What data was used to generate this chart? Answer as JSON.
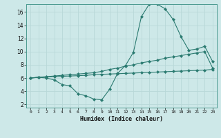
{
  "xlabel": "Humidex (Indice chaleur)",
  "background_color": "#cde8e8",
  "grid_color": "#b8d8d8",
  "line_color": "#2a7a70",
  "xlim": [
    -0.5,
    23.5
  ],
  "ylim": [
    1.5,
    17.2
  ],
  "xticks": [
    0,
    1,
    2,
    3,
    4,
    5,
    6,
    7,
    8,
    9,
    10,
    11,
    12,
    13,
    14,
    15,
    16,
    17,
    18,
    19,
    20,
    21,
    22,
    23
  ],
  "yticks": [
    2,
    4,
    6,
    8,
    10,
    12,
    14,
    16
  ],
  "series1_x": [
    0,
    1,
    2,
    3,
    4,
    5,
    6,
    7,
    8,
    9,
    10,
    11,
    12,
    13,
    14,
    15,
    16,
    17,
    18,
    19,
    20,
    21,
    22,
    23
  ],
  "series1_y": [
    6.0,
    6.1,
    6.0,
    5.7,
    5.0,
    4.8,
    3.6,
    3.3,
    2.8,
    2.7,
    4.3,
    6.7,
    7.9,
    9.9,
    15.3,
    17.2,
    17.2,
    16.5,
    14.9,
    12.3,
    10.2,
    10.4,
    10.8,
    8.5
  ],
  "series2_x": [
    0,
    1,
    2,
    3,
    4,
    5,
    6,
    7,
    8,
    9,
    10,
    11,
    12,
    13,
    14,
    15,
    16,
    17,
    18,
    19,
    20,
    21,
    22,
    23
  ],
  "series2_y": [
    6.0,
    6.1,
    6.2,
    6.3,
    6.4,
    6.5,
    6.6,
    6.7,
    6.8,
    7.0,
    7.3,
    7.5,
    7.8,
    8.0,
    8.3,
    8.5,
    8.7,
    9.0,
    9.2,
    9.4,
    9.6,
    9.8,
    10.0,
    7.5
  ],
  "series3_x": [
    0,
    1,
    2,
    3,
    4,
    5,
    6,
    7,
    8,
    9,
    10,
    11,
    12,
    13,
    14,
    15,
    16,
    17,
    18,
    19,
    20,
    21,
    22,
    23
  ],
  "series3_y": [
    6.0,
    6.1,
    6.15,
    6.2,
    6.25,
    6.3,
    6.35,
    6.4,
    6.5,
    6.55,
    6.6,
    6.65,
    6.7,
    6.75,
    6.8,
    6.85,
    6.9,
    6.95,
    7.0,
    7.05,
    7.1,
    7.15,
    7.2,
    7.3
  ]
}
